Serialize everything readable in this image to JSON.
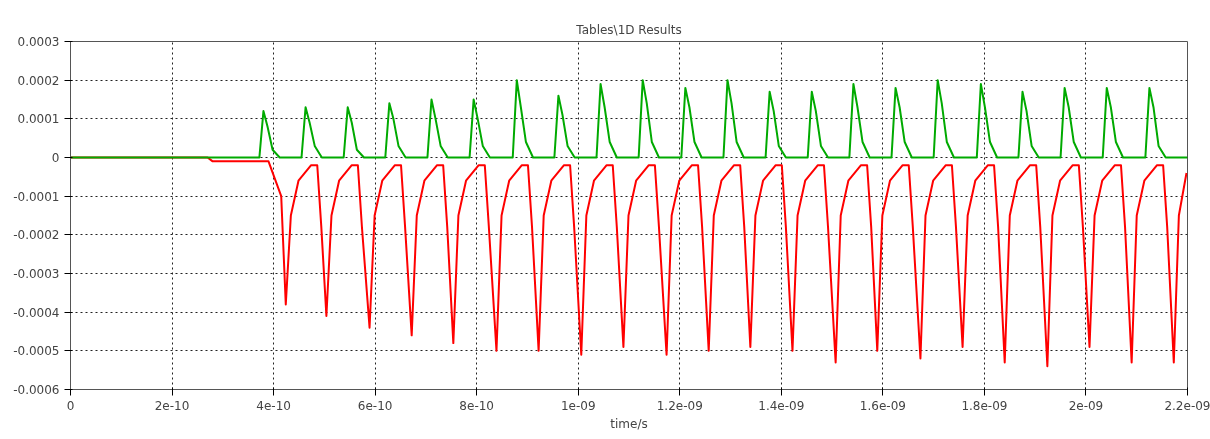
{
  "chart_data": {
    "type": "line",
    "title": "Tables\\1D Results",
    "xlabel": "time/s",
    "xlim": [
      0,
      2.2e-09
    ],
    "ylim": [
      -0.0006,
      0.0003
    ],
    "xticks": [
      0,
      {
        "value": 2e-10,
        "label": "2e-10"
      },
      {
        "value": 4e-10,
        "label": "4e-10"
      },
      {
        "value": 6e-10,
        "label": "6e-10"
      },
      {
        "value": 8e-10,
        "label": "8e-10"
      },
      {
        "value": 1e-09,
        "label": "1e-09"
      },
      {
        "value": 1.2e-09,
        "label": "1.2e-09"
      },
      {
        "value": 1.4e-09,
        "label": "1.4e-09"
      },
      {
        "value": 1.6e-09,
        "label": "1.6e-09"
      },
      {
        "value": 1.8e-09,
        "label": "1.8e-09"
      },
      {
        "value": 2e-09,
        "label": "2e-09"
      },
      {
        "value": 2.2e-09,
        "label": "2.2e-09"
      }
    ],
    "yticks": [
      -0.0006,
      -0.0005,
      -0.0004,
      -0.0003,
      -0.0002,
      -0.0001,
      0,
      0.0001,
      0.0002,
      0.0003
    ],
    "grid": true,
    "marker": "none",
    "line_style": "solid",
    "series": [
      {
        "color": "#ff0000",
        "x": [
          0,
          2.7e-10,
          2.8e-10,
          3.9e-10,
          4.15e-10,
          4.24e-10,
          4.34e-10,
          4.49e-10,
          4.74e-10,
          4.86e-10,
          4.94e-10,
          5.04e-10,
          5.14e-10,
          5.29e-10,
          5.54e-10,
          5.66e-10,
          5.74e-10,
          5.89e-10,
          5.99e-10,
          6.14e-10,
          6.39e-10,
          6.51e-10,
          6.59e-10,
          6.72e-10,
          6.82e-10,
          6.97e-10,
          7.22e-10,
          7.34e-10,
          7.42e-10,
          7.54e-10,
          7.64e-10,
          7.79e-10,
          8.04e-10,
          8.16e-10,
          8.24e-10,
          8.39e-10,
          8.49e-10,
          8.64e-10,
          8.89e-10,
          9.01e-10,
          9.09e-10,
          9.22e-10,
          9.32e-10,
          9.47e-10,
          9.72e-10,
          9.84e-10,
          9.92e-10,
          1.006e-09,
          1.016e-09,
          1.031e-09,
          1.056e-09,
          1.068e-09,
          1.076e-09,
          1.089e-09,
          1.099e-09,
          1.114e-09,
          1.139e-09,
          1.151e-09,
          1.159e-09,
          1.174e-09,
          1.184e-09,
          1.199e-09,
          1.224e-09,
          1.236e-09,
          1.244e-09,
          1.257e-09,
          1.267e-09,
          1.282e-09,
          1.307e-09,
          1.319e-09,
          1.327e-09,
          1.339e-09,
          1.349e-09,
          1.364e-09,
          1.389e-09,
          1.401e-09,
          1.409e-09,
          1.422e-09,
          1.432e-09,
          1.447e-09,
          1.472e-09,
          1.484e-09,
          1.492e-09,
          1.507e-09,
          1.517e-09,
          1.532e-09,
          1.557e-09,
          1.569e-09,
          1.577e-09,
          1.589e-09,
          1.599e-09,
          1.614e-09,
          1.639e-09,
          1.651e-09,
          1.659e-09,
          1.674e-09,
          1.684e-09,
          1.699e-09,
          1.724e-09,
          1.736e-09,
          1.744e-09,
          1.757e-09,
          1.767e-09,
          1.782e-09,
          1.807e-09,
          1.819e-09,
          1.827e-09,
          1.84e-09,
          1.85e-09,
          1.865e-09,
          1.89e-09,
          1.902e-09,
          1.91e-09,
          1.924e-09,
          1.934e-09,
          1.949e-09,
          1.974e-09,
          1.986e-09,
          1.994e-09,
          2.007e-09,
          2.017e-09,
          2.032e-09,
          2.057e-09,
          2.069e-09,
          2.077e-09,
          2.09e-09,
          2.1e-09,
          2.115e-09,
          2.14e-09,
          2.152e-09,
          2.16e-09,
          2.173e-09,
          2.183e-09,
          2.198e-09
        ],
        "values": [
          0,
          0,
          -1e-05,
          -1e-05,
          -0.0001,
          -0.00038,
          -0.00015,
          -6e-05,
          -2e-05,
          -2e-05,
          -0.00018,
          -0.00041,
          -0.00015,
          -6e-05,
          -2e-05,
          -2e-05,
          -0.00018,
          -0.00044,
          -0.00015,
          -6e-05,
          -2e-05,
          -2e-05,
          -0.00018,
          -0.00046,
          -0.00015,
          -6e-05,
          -2e-05,
          -2e-05,
          -0.00018,
          -0.00048,
          -0.00015,
          -6e-05,
          -2e-05,
          -2e-05,
          -0.00018,
          -0.0005,
          -0.00015,
          -6e-05,
          -2e-05,
          -2e-05,
          -0.00018,
          -0.0005,
          -0.00015,
          -6e-05,
          -2e-05,
          -2e-05,
          -0.00018,
          -0.00051,
          -0.00015,
          -6e-05,
          -2e-05,
          -2e-05,
          -0.00018,
          -0.00049,
          -0.00015,
          -6e-05,
          -2e-05,
          -2e-05,
          -0.00018,
          -0.00051,
          -0.00015,
          -6e-05,
          -2e-05,
          -2e-05,
          -0.00018,
          -0.0005,
          -0.00015,
          -6e-05,
          -2e-05,
          -2e-05,
          -0.00018,
          -0.00049,
          -0.00015,
          -6e-05,
          -2e-05,
          -2e-05,
          -0.00018,
          -0.0005,
          -0.00015,
          -6e-05,
          -2e-05,
          -2e-05,
          -0.00018,
          -0.00053,
          -0.00015,
          -6e-05,
          -2e-05,
          -2e-05,
          -0.00018,
          -0.0005,
          -0.00015,
          -6e-05,
          -2e-05,
          -2e-05,
          -0.00018,
          -0.00052,
          -0.00015,
          -6e-05,
          -2e-05,
          -2e-05,
          -0.00018,
          -0.00049,
          -0.00015,
          -6e-05,
          -2e-05,
          -2e-05,
          -0.00018,
          -0.00053,
          -0.00015,
          -6e-05,
          -2e-05,
          -2e-05,
          -0.00018,
          -0.00054,
          -0.00015,
          -6e-05,
          -2e-05,
          -2e-05,
          -0.00018,
          -0.00049,
          -0.00015,
          -6e-05,
          -2e-05,
          -2e-05,
          -0.00018,
          -0.00053,
          -0.00015,
          -6e-05,
          -2e-05,
          -2e-05,
          -0.00018,
          -0.00053,
          -0.00015,
          -4e-05
        ]
      },
      {
        "color": "#00aa00",
        "x": [
          0,
          3.72e-10,
          3.8e-10,
          3.88e-10,
          3.98e-10,
          4.12e-10,
          4.55e-10,
          4.63e-10,
          4.71e-10,
          4.81e-10,
          4.95e-10,
          5.38e-10,
          5.46e-10,
          5.54e-10,
          5.64e-10,
          5.78e-10,
          6.2e-10,
          6.28e-10,
          6.36e-10,
          6.46e-10,
          6.6e-10,
          7.03e-10,
          7.11e-10,
          7.19e-10,
          7.29e-10,
          7.43e-10,
          7.86e-10,
          7.94e-10,
          8.02e-10,
          8.12e-10,
          8.26e-10,
          8.71e-10,
          8.79e-10,
          8.87e-10,
          8.97e-10,
          9.11e-10,
          9.53e-10,
          9.61e-10,
          9.69e-10,
          9.79e-10,
          9.93e-10,
          1.036e-09,
          1.044e-09,
          1.052e-09,
          1.062e-09,
          1.076e-09,
          1.119e-09,
          1.127e-09,
          1.135e-09,
          1.145e-09,
          1.159e-09,
          1.203e-09,
          1.211e-09,
          1.219e-09,
          1.229e-09,
          1.243e-09,
          1.286e-09,
          1.294e-09,
          1.302e-09,
          1.312e-09,
          1.326e-09,
          1.369e-09,
          1.377e-09,
          1.385e-09,
          1.395e-09,
          1.409e-09,
          1.452e-09,
          1.46e-09,
          1.468e-09,
          1.478e-09,
          1.492e-09,
          1.534e-09,
          1.542e-09,
          1.55e-09,
          1.56e-09,
          1.574e-09,
          1.617e-09,
          1.625e-09,
          1.633e-09,
          1.643e-09,
          1.657e-09,
          1.7e-09,
          1.708e-09,
          1.716e-09,
          1.726e-09,
          1.74e-09,
          1.785e-09,
          1.793e-09,
          1.801e-09,
          1.811e-09,
          1.825e-09,
          1.867e-09,
          1.875e-09,
          1.883e-09,
          1.893e-09,
          1.907e-09,
          1.95e-09,
          1.958e-09,
          1.966e-09,
          1.976e-09,
          1.99e-09,
          2.033e-09,
          2.041e-09,
          2.049e-09,
          2.059e-09,
          2.073e-09,
          2.117e-09,
          2.125e-09,
          2.133e-09,
          2.143e-09,
          2.157e-09,
          2.2e-09
        ],
        "values": [
          0,
          0,
          0.00012,
          8e-05,
          2e-05,
          0,
          0,
          0.00013,
          9e-05,
          3e-05,
          0,
          0,
          0.00013,
          9e-05,
          2e-05,
          0,
          0,
          0.00014,
          0.0001,
          3e-05,
          0,
          0,
          0.00015,
          0.0001,
          3e-05,
          0,
          0,
          0.00015,
          0.0001,
          3e-05,
          0,
          0,
          0.0002,
          0.00013,
          4e-05,
          0,
          0,
          0.00016,
          0.00011,
          3e-05,
          0,
          0,
          0.00019,
          0.00013,
          4e-05,
          0,
          0,
          0.0002,
          0.00014,
          4e-05,
          0,
          0,
          0.00018,
          0.00013,
          4e-05,
          0,
          0,
          0.0002,
          0.00014,
          4e-05,
          0,
          0,
          0.00017,
          0.00012,
          3e-05,
          0,
          0,
          0.00017,
          0.00012,
          3e-05,
          0,
          0,
          0.00019,
          0.00013,
          4e-05,
          0,
          0,
          0.00018,
          0.00013,
          4e-05,
          0,
          0,
          0.0002,
          0.00014,
          4e-05,
          0,
          0,
          0.00019,
          0.00013,
          4e-05,
          0,
          0,
          0.00017,
          0.00012,
          3e-05,
          0,
          0,
          0.00018,
          0.00013,
          4e-05,
          0,
          0,
          0.00018,
          0.00013,
          4e-05,
          0,
          0,
          0.00018,
          0.00013,
          3e-05,
          0,
          0
        ]
      }
    ]
  }
}
